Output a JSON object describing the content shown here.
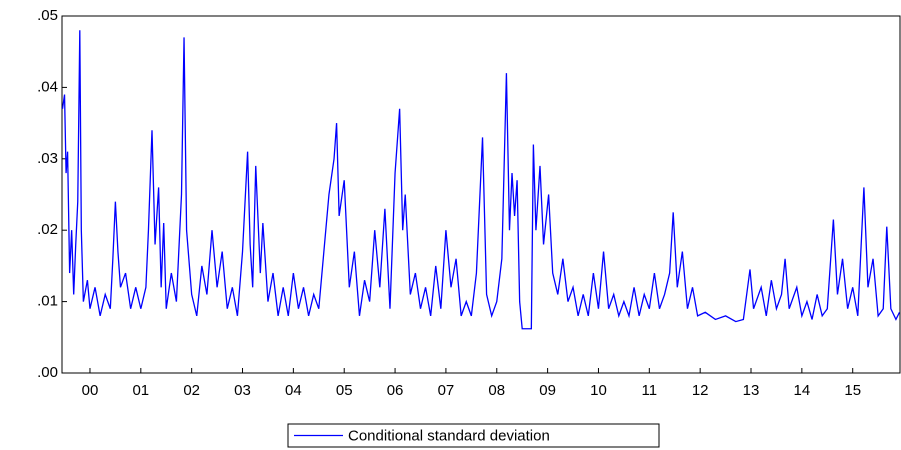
{
  "chart_data": {
    "type": "line",
    "x": [
      -0.04,
      0.0,
      0.03,
      0.06,
      0.1,
      0.14,
      0.18,
      0.22,
      0.26,
      0.3,
      0.33,
      0.37,
      0.45,
      0.5,
      0.6,
      0.7,
      0.8,
      0.9,
      0.95,
      1.0,
      1.05,
      1.1,
      1.2,
      1.3,
      1.4,
      1.5,
      1.6,
      1.65,
      1.72,
      1.78,
      1.85,
      1.9,
      1.95,
      2.0,
      2.1,
      2.2,
      2.3,
      2.35,
      2.4,
      2.5,
      2.6,
      2.7,
      2.8,
      2.9,
      3.0,
      3.1,
      3.2,
      3.3,
      3.4,
      3.5,
      3.6,
      3.65,
      3.7,
      3.76,
      3.85,
      3.9,
      4.0,
      4.1,
      4.2,
      4.3,
      4.4,
      4.5,
      4.6,
      4.7,
      4.8,
      4.9,
      5.0,
      5.1,
      5.2,
      5.3,
      5.35,
      5.4,
      5.5,
      5.6,
      5.7,
      5.8,
      5.9,
      6.0,
      6.1,
      6.2,
      6.3,
      6.4,
      6.5,
      6.59,
      6.65,
      6.7,
      6.8,
      6.9,
      7.0,
      7.1,
      7.2,
      7.3,
      7.4,
      7.5,
      7.6,
      7.7,
      7.8,
      7.9,
      8.0,
      8.1,
      8.22,
      8.3,
      8.4,
      8.5,
      8.6,
      8.69,
      8.75,
      8.8,
      8.85,
      8.9,
      8.95,
      9.0,
      9.18,
      9.22,
      9.27,
      9.35,
      9.42,
      9.52,
      9.6,
      9.7,
      9.8,
      9.9,
      10.0,
      10.1,
      10.2,
      10.3,
      10.4,
      10.5,
      10.6,
      10.7,
      10.8,
      10.9,
      11.0,
      11.1,
      11.2,
      11.3,
      11.4,
      11.5,
      11.6,
      11.7,
      11.8,
      11.9,
      11.97,
      12.05,
      12.15,
      12.25,
      12.35,
      12.45,
      12.6,
      12.8,
      13.0,
      13.2,
      13.35,
      13.48,
      13.55,
      13.7,
      13.8,
      13.9,
      14.0,
      14.1,
      14.17,
      14.25,
      14.4,
      14.5,
      14.6,
      14.7,
      14.8,
      14.9,
      15.0,
      15.12,
      15.2,
      15.3,
      15.4,
      15.5,
      15.6,
      15.72,
      15.8,
      15.9,
      16.0,
      16.1,
      16.17,
      16.25,
      16.35,
      16.42
    ],
    "series": [
      {
        "name": "Conditional standard deviation",
        "color": "#0000ff",
        "values": [
          0.037,
          0.039,
          0.028,
          0.031,
          0.014,
          0.02,
          0.011,
          0.018,
          0.024,
          0.048,
          0.02,
          0.01,
          0.013,
          0.009,
          0.012,
          0.008,
          0.011,
          0.009,
          0.016,
          0.024,
          0.017,
          0.012,
          0.014,
          0.009,
          0.012,
          0.009,
          0.012,
          0.02,
          0.034,
          0.018,
          0.026,
          0.012,
          0.021,
          0.009,
          0.014,
          0.01,
          0.025,
          0.047,
          0.02,
          0.011,
          0.008,
          0.015,
          0.011,
          0.02,
          0.012,
          0.017,
          0.009,
          0.012,
          0.008,
          0.017,
          0.031,
          0.018,
          0.012,
          0.029,
          0.014,
          0.021,
          0.01,
          0.014,
          0.008,
          0.012,
          0.008,
          0.014,
          0.009,
          0.012,
          0.008,
          0.011,
          0.009,
          0.017,
          0.025,
          0.03,
          0.035,
          0.022,
          0.027,
          0.012,
          0.017,
          0.008,
          0.013,
          0.01,
          0.02,
          0.012,
          0.023,
          0.009,
          0.028,
          0.037,
          0.02,
          0.025,
          0.011,
          0.014,
          0.009,
          0.012,
          0.008,
          0.015,
          0.009,
          0.02,
          0.012,
          0.016,
          0.008,
          0.01,
          0.008,
          0.014,
          0.033,
          0.011,
          0.008,
          0.01,
          0.016,
          0.042,
          0.02,
          0.028,
          0.022,
          0.027,
          0.01,
          0.0062,
          0.0062,
          0.032,
          0.02,
          0.029,
          0.018,
          0.025,
          0.014,
          0.011,
          0.016,
          0.01,
          0.012,
          0.008,
          0.011,
          0.008,
          0.014,
          0.009,
          0.017,
          0.009,
          0.011,
          0.008,
          0.01,
          0.008,
          0.012,
          0.008,
          0.011,
          0.009,
          0.014,
          0.009,
          0.011,
          0.014,
          0.0225,
          0.012,
          0.017,
          0.009,
          0.012,
          0.008,
          0.0085,
          0.0075,
          0.008,
          0.0072,
          0.0075,
          0.0145,
          0.009,
          0.012,
          0.008,
          0.013,
          0.009,
          0.011,
          0.016,
          0.009,
          0.012,
          0.008,
          0.01,
          0.0075,
          0.011,
          0.008,
          0.009,
          0.0215,
          0.011,
          0.016,
          0.009,
          0.012,
          0.008,
          0.026,
          0.012,
          0.016,
          0.008,
          0.009,
          0.0205,
          0.009,
          0.0075,
          0.0085
        ]
      }
    ],
    "xlim": [
      -0.05,
      16.43
    ],
    "xticks": [
      {
        "value": 0.5,
        "label": "00"
      },
      {
        "value": 1.5,
        "label": "01"
      },
      {
        "value": 2.5,
        "label": "02"
      },
      {
        "value": 3.5,
        "label": "03"
      },
      {
        "value": 4.5,
        "label": "04"
      },
      {
        "value": 5.5,
        "label": "05"
      },
      {
        "value": 6.5,
        "label": "06"
      },
      {
        "value": 7.5,
        "label": "07"
      },
      {
        "value": 8.5,
        "label": "08"
      },
      {
        "value": 9.5,
        "label": "09"
      },
      {
        "value": 10.5,
        "label": "10"
      },
      {
        "value": 11.5,
        "label": "11"
      },
      {
        "value": 12.5,
        "label": "12"
      },
      {
        "value": 13.5,
        "label": "13"
      },
      {
        "value": 14.5,
        "label": "14"
      },
      {
        "value": 15.5,
        "label": "15"
      }
    ],
    "ylim": [
      0,
      0.05
    ],
    "yticks": [
      {
        "value": 0,
        "label": ".00"
      },
      {
        "value": 0.01,
        "label": ".01"
      },
      {
        "value": 0.02,
        "label": ".02"
      },
      {
        "value": 0.03,
        "label": ".03"
      },
      {
        "value": 0.04,
        "label": ".04"
      },
      {
        "value": 0.05,
        "label": ".05"
      }
    ],
    "legend": "bottom"
  }
}
